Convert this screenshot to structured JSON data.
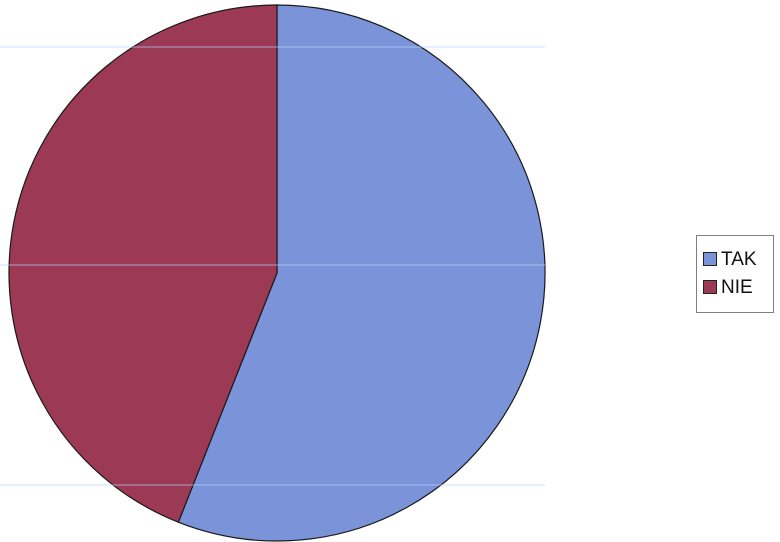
{
  "chart_data": {
    "type": "pie",
    "categories": [
      "TAK",
      "NIE"
    ],
    "values": [
      56,
      44
    ],
    "colors": [
      "#7b93d9",
      "#9c3a55"
    ],
    "legend_position": "right",
    "start_angle": "top",
    "direction": "clockwise"
  }
}
